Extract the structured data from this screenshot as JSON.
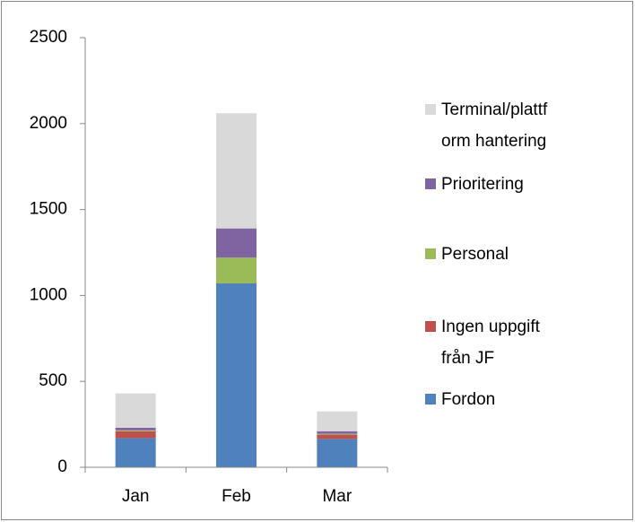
{
  "chart_data": {
    "type": "stacked_bar",
    "categories": [
      "Jan",
      "Feb",
      "Mar"
    ],
    "series": [
      {
        "name": "Fordon",
        "color": "#4f81bd",
        "values": [
          170,
          1070,
          165
        ]
      },
      {
        "name": "Ingen uppgift från JF",
        "color": "#c0504d",
        "values": [
          40,
          0,
          25
        ]
      },
      {
        "name": "Personal",
        "color": "#9bbb59",
        "values": [
          5,
          150,
          5
        ]
      },
      {
        "name": "Prioritering",
        "color": "#8064a2",
        "values": [
          15,
          170,
          15
        ]
      },
      {
        "name": "Terminal/plattform hantering",
        "color": "#d9d9d9",
        "values": [
          200,
          670,
          115
        ]
      }
    ],
    "ylim": [
      0,
      2500
    ],
    "yticks": [
      0,
      500,
      1000,
      1500,
      2000,
      2500
    ]
  }
}
